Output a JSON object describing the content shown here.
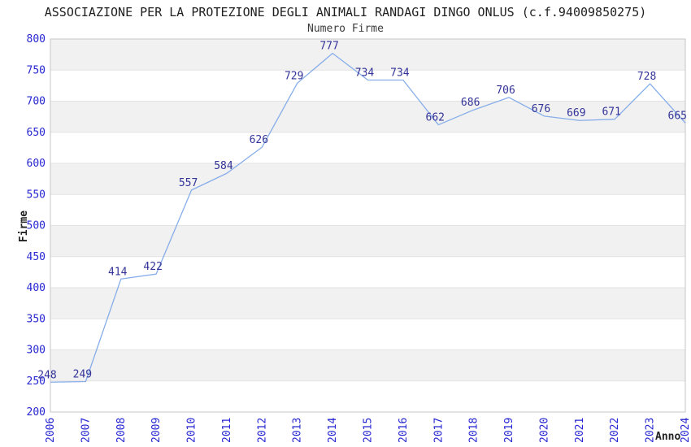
{
  "chart_data": {
    "type": "line",
    "title": "ASSOCIAZIONE PER LA PROTEZIONE DEGLI ANIMALI RANDAGI DINGO ONLUS (c.f.94009850275)",
    "subtitle": "Numero Firme",
    "xlabel": "Anno",
    "ylabel": "Firme",
    "categories": [
      "2006",
      "2007",
      "2008",
      "2009",
      "2010",
      "2011",
      "2012",
      "2013",
      "2014",
      "2015",
      "2016",
      "2017",
      "2018",
      "2019",
      "2020",
      "2021",
      "2022",
      "2023",
      "2024"
    ],
    "values": [
      248,
      249,
      414,
      422,
      557,
      584,
      626,
      729,
      777,
      734,
      734,
      662,
      686,
      706,
      676,
      669,
      671,
      728,
      665
    ],
    "ylim": [
      200,
      800
    ],
    "ytick_step": 50,
    "grid": "horizontal-bands",
    "legend": "none",
    "colors": {
      "line": "#86ade9",
      "band": "#f1f1f1",
      "gridline": "#e3e3e3",
      "plot_border": "#c6c6c6",
      "tick_label": "#2626d2",
      "data_label": "#333399",
      "title": "#1f1f1f",
      "subtitle": "#3c3c3c",
      "axis_title": "#222222"
    }
  }
}
